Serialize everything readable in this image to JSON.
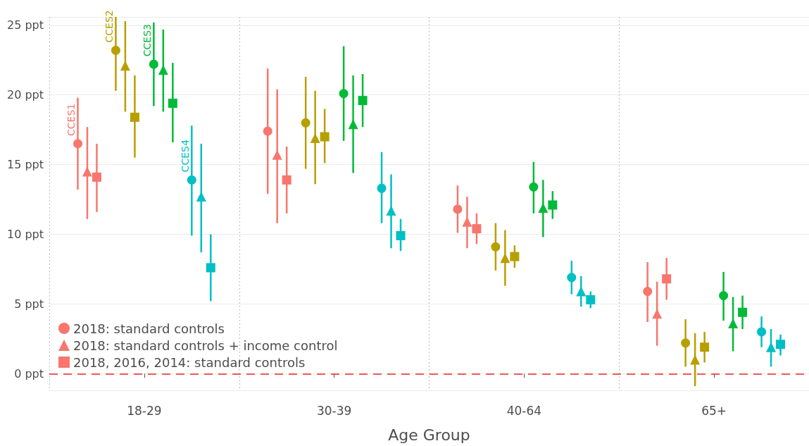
{
  "chart_data": {
    "type": "scatter",
    "xlabel": "Age Group",
    "categories": [
      "18-29",
      "30-39",
      "40-64",
      "65+"
    ],
    "ylim": [
      -1.2,
      25.6
    ],
    "yticks": [
      {
        "value": 0,
        "label": "0 ppt"
      },
      {
        "value": 5,
        "label": "5 ppt"
      },
      {
        "value": 10,
        "label": "10 ppt"
      },
      {
        "value": 15,
        "label": "15 ppt"
      },
      {
        "value": 20,
        "label": "20 ppt"
      },
      {
        "value": 25,
        "label": "25 ppt"
      }
    ],
    "grid": true,
    "legend": "bottom left",
    "ref_lines": [
      {
        "axis": "y",
        "value": 0,
        "color": "#e8292a",
        "line_style": "dashed"
      }
    ],
    "annotations": [
      "CCES1",
      "CCES2",
      "CCES3",
      "CCES4"
    ],
    "series": [
      {
        "name": "2018: standard controls",
        "color": "#f8766d",
        "marker": "circle",
        "values": [
          16.5,
          17.4,
          11.8,
          5.9
        ],
        "errors": [
          [
            13.2,
            19.8
          ],
          [
            12.9,
            21.9
          ],
          [
            10.1,
            13.5
          ],
          [
            3.7,
            8.0
          ]
        ]
      },
      {
        "name": "2018: standard controls + income control",
        "color": "#f8766d",
        "marker": "triangle",
        "values": [
          14.5,
          15.7,
          10.9,
          4.3
        ],
        "errors": [
          [
            11.1,
            17.7
          ],
          [
            10.8,
            20.4
          ],
          [
            9.0,
            12.7
          ],
          [
            2.0,
            6.6
          ]
        ]
      },
      {
        "name": "2018, 2016, 2014: standard controls",
        "color": "#f8766d",
        "marker": "square",
        "values": [
          14.1,
          13.9,
          10.4,
          6.8
        ],
        "errors": [
          [
            11.6,
            16.5
          ],
          [
            11.5,
            16.3
          ],
          [
            9.3,
            11.5
          ],
          [
            5.3,
            8.3
          ]
        ]
      },
      {
        "color": "#b79f00",
        "marker": "circle",
        "values": [
          23.2,
          18.0,
          9.1,
          2.2
        ],
        "errors": [
          [
            20.3,
            25.6
          ],
          [
            14.7,
            21.3
          ],
          [
            7.4,
            10.8
          ],
          [
            0.5,
            3.9
          ]
        ]
      },
      {
        "color": "#b79f00",
        "marker": "triangle",
        "values": [
          22.1,
          16.9,
          8.3,
          1.0
        ],
        "errors": [
          [
            18.8,
            25.3
          ],
          [
            13.6,
            20.3
          ],
          [
            6.3,
            10.3
          ],
          [
            -0.9,
            2.9
          ]
        ]
      },
      {
        "color": "#b79f00",
        "marker": "square",
        "values": [
          18.4,
          17.0,
          8.4,
          1.9
        ],
        "errors": [
          [
            15.5,
            21.4
          ],
          [
            15.1,
            19.0
          ],
          [
            7.6,
            9.2
          ],
          [
            0.8,
            3.0
          ]
        ]
      },
      {
        "color": "#00ba38",
        "marker": "circle",
        "values": [
          22.2,
          20.1,
          13.4,
          5.6
        ],
        "errors": [
          [
            19.2,
            25.2
          ],
          [
            16.7,
            23.5
          ],
          [
            11.5,
            15.2
          ],
          [
            3.8,
            7.3
          ]
        ]
      },
      {
        "color": "#00ba38",
        "marker": "triangle",
        "values": [
          21.8,
          17.9,
          11.9,
          3.6
        ],
        "errors": [
          [
            18.8,
            24.7
          ],
          [
            14.4,
            21.4
          ],
          [
            9.8,
            13.9
          ],
          [
            1.6,
            5.5
          ]
        ]
      },
      {
        "color": "#00ba38",
        "marker": "square",
        "values": [
          19.4,
          19.6,
          12.1,
          4.4
        ],
        "errors": [
          [
            16.6,
            22.3
          ],
          [
            17.7,
            21.5
          ],
          [
            11.1,
            13.1
          ],
          [
            3.2,
            5.6
          ]
        ]
      },
      {
        "color": "#00bfc4",
        "marker": "circle",
        "values": [
          13.9,
          13.3,
          6.9,
          3.0
        ],
        "errors": [
          [
            9.9,
            17.8
          ],
          [
            10.8,
            15.9
          ],
          [
            5.7,
            8.1
          ],
          [
            1.9,
            4.1
          ]
        ]
      },
      {
        "color": "#00bfc4",
        "marker": "triangle",
        "values": [
          12.7,
          11.7,
          5.9,
          1.9
        ],
        "errors": [
          [
            8.7,
            16.5
          ],
          [
            9.0,
            14.3
          ],
          [
            4.8,
            7.0
          ],
          [
            0.5,
            3.2
          ]
        ]
      },
      {
        "color": "#00bfc4",
        "marker": "square",
        "values": [
          7.6,
          9.9,
          5.3,
          2.1
        ],
        "errors": [
          [
            5.2,
            10.0
          ],
          [
            8.8,
            11.1
          ],
          [
            4.7,
            5.9
          ],
          [
            1.3,
            2.8
          ]
        ]
      }
    ]
  }
}
